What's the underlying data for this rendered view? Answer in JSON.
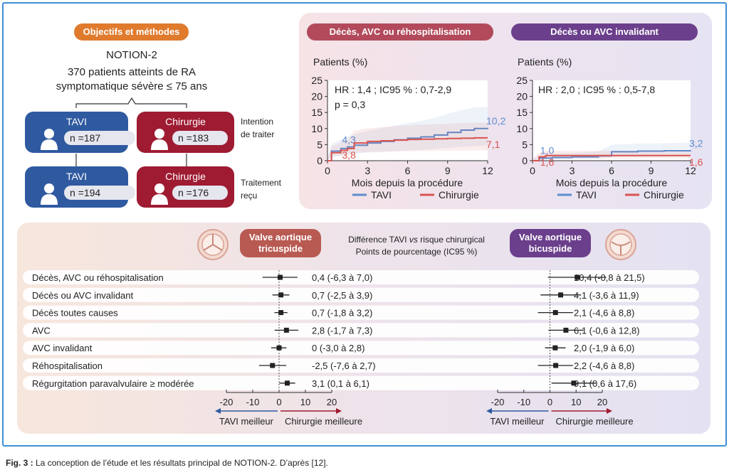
{
  "design": {
    "badge": "Objectifs et méthodes",
    "trial": "NOTION-2",
    "population_line1": "370 patients atteints de RA",
    "population_line2": "symptomatique sévère ≤ 75 ans",
    "itt_label_1": "Intention",
    "itt_label_2": "de traiter",
    "tr_label_1": "Traitement",
    "tr_label_2": "reçu",
    "tavi_label": "TAVI",
    "surgery_label": "Chirurgie",
    "itt_tavi_n": "n =187",
    "itt_surgery_n": "n =183",
    "tr_tavi_n": "n =194",
    "tr_surgery_n": "n =176",
    "colors": {
      "tavi": "#2f5aa0",
      "surgery": "#9e1b32",
      "badge": "#e07b2e"
    }
  },
  "km": {
    "left_title": "Décès, AVC ou réhospitalisation",
    "right_title": "Décès ou AVC invalidant",
    "title_colors": {
      "left": "#b24a5c",
      "right": "#6b3f8c"
    }
  },
  "forest_header": {
    "tricuspid_1": "Valve aortique",
    "tricuspid_2": "tricuspide",
    "bicuspid_1": "Valve aortique",
    "bicuspid_2": "bicuspide",
    "center_1": "Différence TAVI ",
    "center_vs": "vs",
    "center_1b": " risque chirurgical",
    "center_2": "Points de pourcentage (IC95 %)"
  },
  "caption": {
    "label": "Fig. 3 :",
    "text": " La conception de l’étude et les résultats principal de NOTION-2. D’après [12]."
  },
  "chart_data": [
    {
      "type": "line",
      "title": "Décès, AVC ou réhospitalisation",
      "ylabel": "Patients (%)",
      "xlabel": "Mois depuis la procédure",
      "xlim": [
        0,
        12
      ],
      "ylim": [
        0,
        25
      ],
      "xticks": [
        "0",
        "3",
        "6",
        "9",
        "12"
      ],
      "yticks": [
        "0",
        "5",
        "10",
        "15",
        "20",
        "25"
      ],
      "annotations": [
        "HR : 1,4 ; IC95 % : 0,7-2,9",
        "p = 0,3"
      ],
      "legend": "bottom",
      "series": [
        {
          "name": "TAVI",
          "color": "#5b8ccf",
          "x": [
            0,
            0.3,
            1,
            1.5,
            2,
            3,
            4,
            5,
            6,
            7,
            8,
            9,
            10,
            11,
            12
          ],
          "y": [
            0,
            3.0,
            3.8,
            4.3,
            4.8,
            5.5,
            6.0,
            6.5,
            7.0,
            7.4,
            8.0,
            8.8,
            9.5,
            10.0,
            10.2
          ],
          "labels": [
            {
              "x": 1.5,
              "y": 4.3,
              "text": "4,3"
            },
            {
              "x": 12,
              "y": 10.2,
              "text": "10,2"
            }
          ]
        },
        {
          "name": "Chirurgie",
          "color": "#d9534f",
          "x": [
            0,
            0.3,
            1,
            1.5,
            2,
            3,
            4,
            5,
            6,
            7,
            8,
            9,
            10,
            11,
            12
          ],
          "y": [
            0,
            2.5,
            3.2,
            3.8,
            5.5,
            6.0,
            6.2,
            6.4,
            6.6,
            6.7,
            6.8,
            6.9,
            7.0,
            7.1,
            7.1
          ],
          "labels": [
            {
              "x": 1.5,
              "y": 3.8,
              "text": "3,8"
            },
            {
              "x": 12,
              "y": 7.1,
              "text": "7,1"
            }
          ]
        }
      ]
    },
    {
      "type": "line",
      "title": "Décès ou AVC invalidant",
      "ylabel": "Patients (%)",
      "xlabel": "Mois depuis la procédure",
      "xlim": [
        0,
        12
      ],
      "ylim": [
        0,
        25
      ],
      "xticks": [
        "0",
        "3",
        "6",
        "9",
        "12"
      ],
      "yticks": [
        "0",
        "5",
        "10",
        "15",
        "20",
        "25"
      ],
      "annotations": [
        "HR : 2,0 ; IC95 % : 0,5-7,8"
      ],
      "legend": "bottom",
      "series": [
        {
          "name": "TAVI",
          "color": "#5b8ccf",
          "x": [
            0,
            0.5,
            1.5,
            3,
            5,
            6,
            8,
            10,
            12
          ],
          "y": [
            0,
            0.8,
            1.0,
            1.2,
            1.5,
            2.8,
            3.0,
            3.1,
            3.2
          ],
          "labels": [
            {
              "x": 1,
              "y": 1.0,
              "text": "1,0"
            },
            {
              "x": 12,
              "y": 3.2,
              "text": "3,2"
            }
          ]
        },
        {
          "name": "Chirurgie",
          "color": "#d9534f",
          "x": [
            0,
            0.5,
            1,
            3,
            6,
            8,
            10,
            12
          ],
          "y": [
            0,
            1.2,
            1.6,
            1.6,
            1.6,
            1.6,
            1.6,
            1.6
          ],
          "labels": [
            {
              "x": 1,
              "y": 1.6,
              "text": "1,6"
            },
            {
              "x": 12,
              "y": 1.6,
              "text": "1,6"
            }
          ]
        }
      ]
    },
    {
      "type": "forest",
      "title": "Valve aortique tricuspide",
      "xlim": [
        -20,
        20
      ],
      "xticks": [
        "-20",
        "-10",
        "0",
        "10",
        "20"
      ],
      "left_arrow": "TAVI meilleur",
      "right_arrow": "Chirurgie meilleure",
      "rows": [
        {
          "label": "Décès, AVC ou réhospitalisation",
          "estimate": 0.4,
          "low": -6.3,
          "high": 7.0,
          "text": "0,4 (-6,3 à 7,0)"
        },
        {
          "label": "Décès ou AVC invalidant",
          "estimate": 0.7,
          "low": -2.5,
          "high": 3.9,
          "text": "0,7 (-2,5 à 3,9)"
        },
        {
          "label": "Décès toutes causes",
          "estimate": 0.7,
          "low": -1.8,
          "high": 3.2,
          "text": "0,7 (-1,8 à 3,2)"
        },
        {
          "label": "AVC",
          "estimate": 2.8,
          "low": -1.7,
          "high": 7.3,
          "text": "2,8 (-1,7 à 7,3)"
        },
        {
          "label": "AVC invalidant",
          "estimate": 0,
          "low": -3.0,
          "high": 2.8,
          "text": "0 (-3,0 à 2,8)"
        },
        {
          "label": "Réhospitalisation",
          "estimate": -2.5,
          "low": -7.6,
          "high": 2.7,
          "text": "-2,5 (-7,6 à 2,7)"
        },
        {
          "label": "Régurgitation paravalvulaire ≥ modérée",
          "estimate": 3.1,
          "low": 0.1,
          "high": 6.1,
          "text": "3,1 (0,1 à 6,1)"
        }
      ]
    },
    {
      "type": "forest",
      "title": "Valve aortique bicuspide",
      "xlim": [
        -20,
        20
      ],
      "xticks": [
        "-20",
        "-10",
        "0",
        "10",
        "20"
      ],
      "left_arrow": "TAVI meilleur",
      "right_arrow": "Chirurgie meilleure",
      "rows": [
        {
          "estimate": 10.4,
          "low": -0.8,
          "high": 21.5,
          "text": "10,4 (-0,8 à 21,5)"
        },
        {
          "estimate": 4.1,
          "low": -3.6,
          "high": 11.9,
          "text": "4,1 (-3,6 à 11,9)"
        },
        {
          "estimate": 2.1,
          "low": -4.6,
          "high": 8.8,
          "text": "2,1 (-4,6 à 8,8)"
        },
        {
          "estimate": 6.1,
          "low": -0.6,
          "high": 12.8,
          "text": "6,1 (-0,6 à 12,8)"
        },
        {
          "estimate": 2.0,
          "low": -1.9,
          "high": 6.0,
          "text": "2,0 (-1,9 à 6,0)"
        },
        {
          "estimate": 2.2,
          "low": -4.6,
          "high": 8.8,
          "text": "2,2 (-4,6 à 8,8)"
        },
        {
          "estimate": 9.1,
          "low": 0.6,
          "high": 17.6,
          "text": "9,1 (0,6 à 17,6)"
        }
      ]
    }
  ]
}
